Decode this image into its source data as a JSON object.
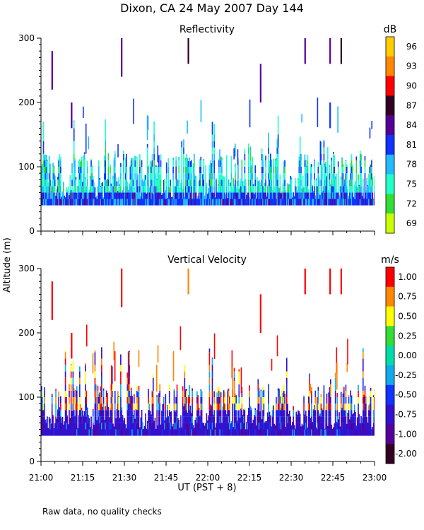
{
  "chart_data": {
    "type": "heatmap",
    "title": "Dixon, CA 24 May 2007  Day 144",
    "ylabel": "Altitude (m)",
    "xlabel": "UT  (PST + 8)",
    "footnote": "Raw data, no quality checks",
    "x_range_minutes": [
      0,
      120
    ],
    "x_ticks": [
      "21:00",
      "21:15",
      "21:30",
      "21:45",
      "22:00",
      "22:15",
      "22:30",
      "22:45",
      "23:00"
    ],
    "y_range": [
      0,
      300
    ],
    "y_ticks": [
      "0",
      "100",
      "200",
      "300"
    ],
    "panels": [
      {
        "name": "reflectivity",
        "title": "Reflectivity",
        "units": "dB",
        "colorbar_labels": [
          "96",
          "93",
          "90",
          "87",
          "84",
          "81",
          "78",
          "75",
          "72",
          "69"
        ],
        "colors": [
          "#ccff00",
          "#33dd33",
          "#22ffcc",
          "#22bbff",
          "#1133ff",
          "#550099",
          "#330022",
          "#ff0000",
          "#ff8800",
          "#ffcc00"
        ],
        "clutter_base_top_m": 80,
        "echoes": [
          {
            "t": 4,
            "y0": 220,
            "y1": 280,
            "level": 5
          },
          {
            "t": 11,
            "y0": 160,
            "y1": 200,
            "level": 5
          },
          {
            "t": 29,
            "y0": 240,
            "y1": 300,
            "level": 5
          },
          {
            "t": 53,
            "y0": 260,
            "y1": 300,
            "level": 6
          },
          {
            "t": 79,
            "y0": 200,
            "y1": 260,
            "level": 5
          },
          {
            "t": 95,
            "y0": 260,
            "y1": 300,
            "level": 5
          },
          {
            "t": 104,
            "y0": 260,
            "y1": 300,
            "level": 5
          },
          {
            "t": 108,
            "y0": 260,
            "y1": 300,
            "level": 6
          },
          {
            "t": 104,
            "y0": 160,
            "y1": 200,
            "level": 4
          }
        ]
      },
      {
        "name": "vertical-velocity",
        "title": "Vertical Velocity",
        "units": "m/s",
        "colorbar_labels": [
          "1.00",
          "0.75",
          "0.50",
          "0.25",
          "0.00",
          "-0.25",
          "-0.50",
          "-0.75",
          "-1.00",
          "-2.00"
        ],
        "colors": [
          "#330022",
          "#550099",
          "#3311cc",
          "#1133ff",
          "#11aaee",
          "#00ddaa",
          "#33dd33",
          "#ffff00",
          "#ff8800",
          "#ff0000"
        ],
        "clutter_base_top_m": 80,
        "echoes": [
          {
            "t": 4,
            "y0": 220,
            "y1": 280,
            "level": 9
          },
          {
            "t": 11,
            "y0": 160,
            "y1": 200,
            "level": 9
          },
          {
            "t": 29,
            "y0": 240,
            "y1": 300,
            "level": 9
          },
          {
            "t": 53,
            "y0": 260,
            "y1": 300,
            "level": 8
          },
          {
            "t": 79,
            "y0": 200,
            "y1": 260,
            "level": 9
          },
          {
            "t": 95,
            "y0": 260,
            "y1": 300,
            "level": 9
          },
          {
            "t": 104,
            "y0": 260,
            "y1": 300,
            "level": 9
          },
          {
            "t": 108,
            "y0": 260,
            "y1": 300,
            "level": 9
          }
        ]
      }
    ]
  }
}
